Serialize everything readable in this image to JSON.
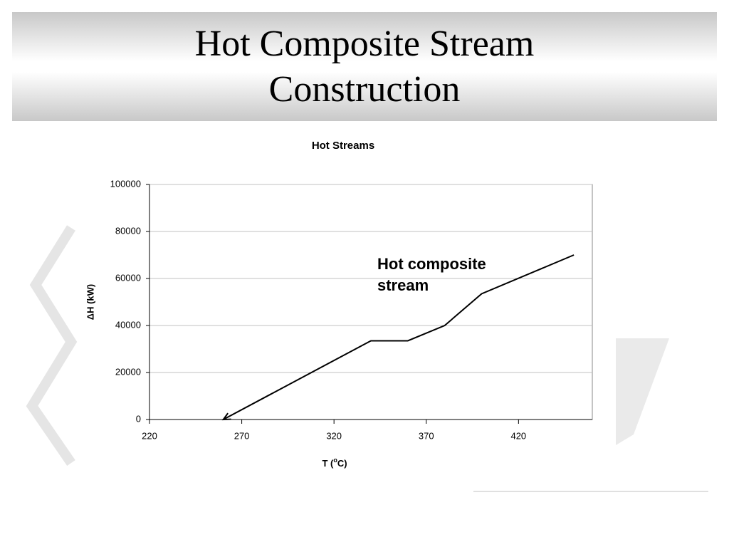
{
  "slide": {
    "title": "Hot Composite Stream Construction"
  },
  "chart_data": {
    "type": "line",
    "title": "Hot Streams",
    "x_label": {
      "prefix": "T (",
      "superscript": "o",
      "suffix": "C)"
    },
    "y_label": "ΔH (kW)",
    "x": [
      260,
      340,
      360,
      380,
      400,
      450
    ],
    "series": [
      {
        "name": "Hot composite stream",
        "color": "#000000",
        "values": [
          0,
          33500,
          33500,
          40000,
          53500,
          70000
        ]
      }
    ],
    "xlim": [
      220,
      460
    ],
    "xticks": [
      220,
      270,
      320,
      370,
      420
    ],
    "ylim": [
      0,
      100000
    ],
    "yticks": [
      0,
      20000,
      40000,
      60000,
      80000,
      100000
    ],
    "grid": true
  }
}
